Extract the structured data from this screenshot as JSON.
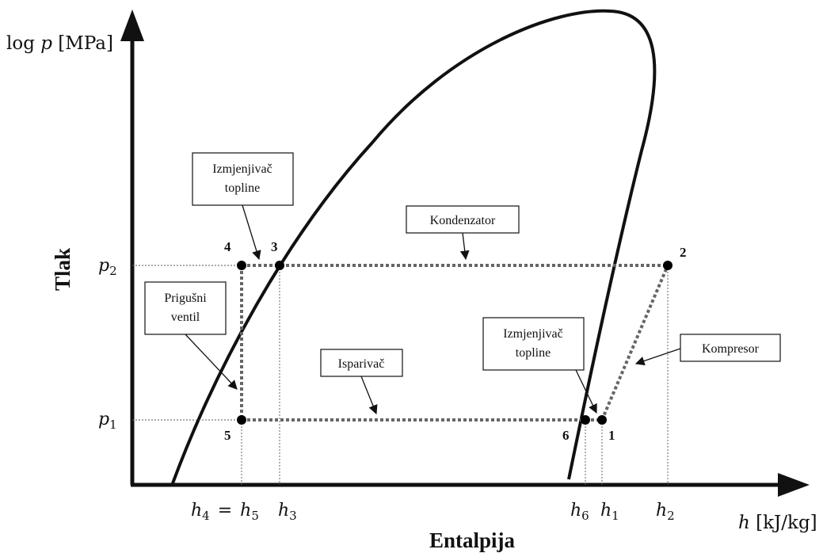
{
  "axes": {
    "y_title": "Tlak",
    "y_unit_a": "log",
    "y_unit_b": "p",
    "y_unit_c": "[MPa]",
    "x_title": "Entalpija",
    "x_unit_a": "h",
    "x_unit_b": "[kJ/kg]"
  },
  "pressure_ticks": [
    {
      "sym": "p",
      "sub": "2"
    },
    {
      "sym": "p",
      "sub": "1"
    }
  ],
  "enthalpy_ticks": {
    "h45_a": "h",
    "h45_sub_a": "4",
    "h45_eq": "=",
    "h45_b": "h",
    "h45_sub_b": "5",
    "h3": "h",
    "h3_sub": "3",
    "h6": "h",
    "h6_sub": "6",
    "h1": "h",
    "h1_sub": "1",
    "h2": "h",
    "h2_sub": "2"
  },
  "points": [
    "1",
    "2",
    "3",
    "4",
    "5",
    "6"
  ],
  "callouts": {
    "kondenzator": "Kondenzator",
    "izmjenjivac_top_1": "Izmjenjivač",
    "izmjenjivac_top_2": "topline",
    "prigusni_1": "Prigušni",
    "prigusni_2": "ventil",
    "isparivac": "Isparivač",
    "izmjenjivac_bot_1": "Izmjenjivač",
    "izmjenjivac_bot_2": "topline",
    "kompresor": "Kompresor"
  },
  "colors": {
    "axis": "#111111",
    "cycle_line": "#666666",
    "point": "#000000"
  }
}
